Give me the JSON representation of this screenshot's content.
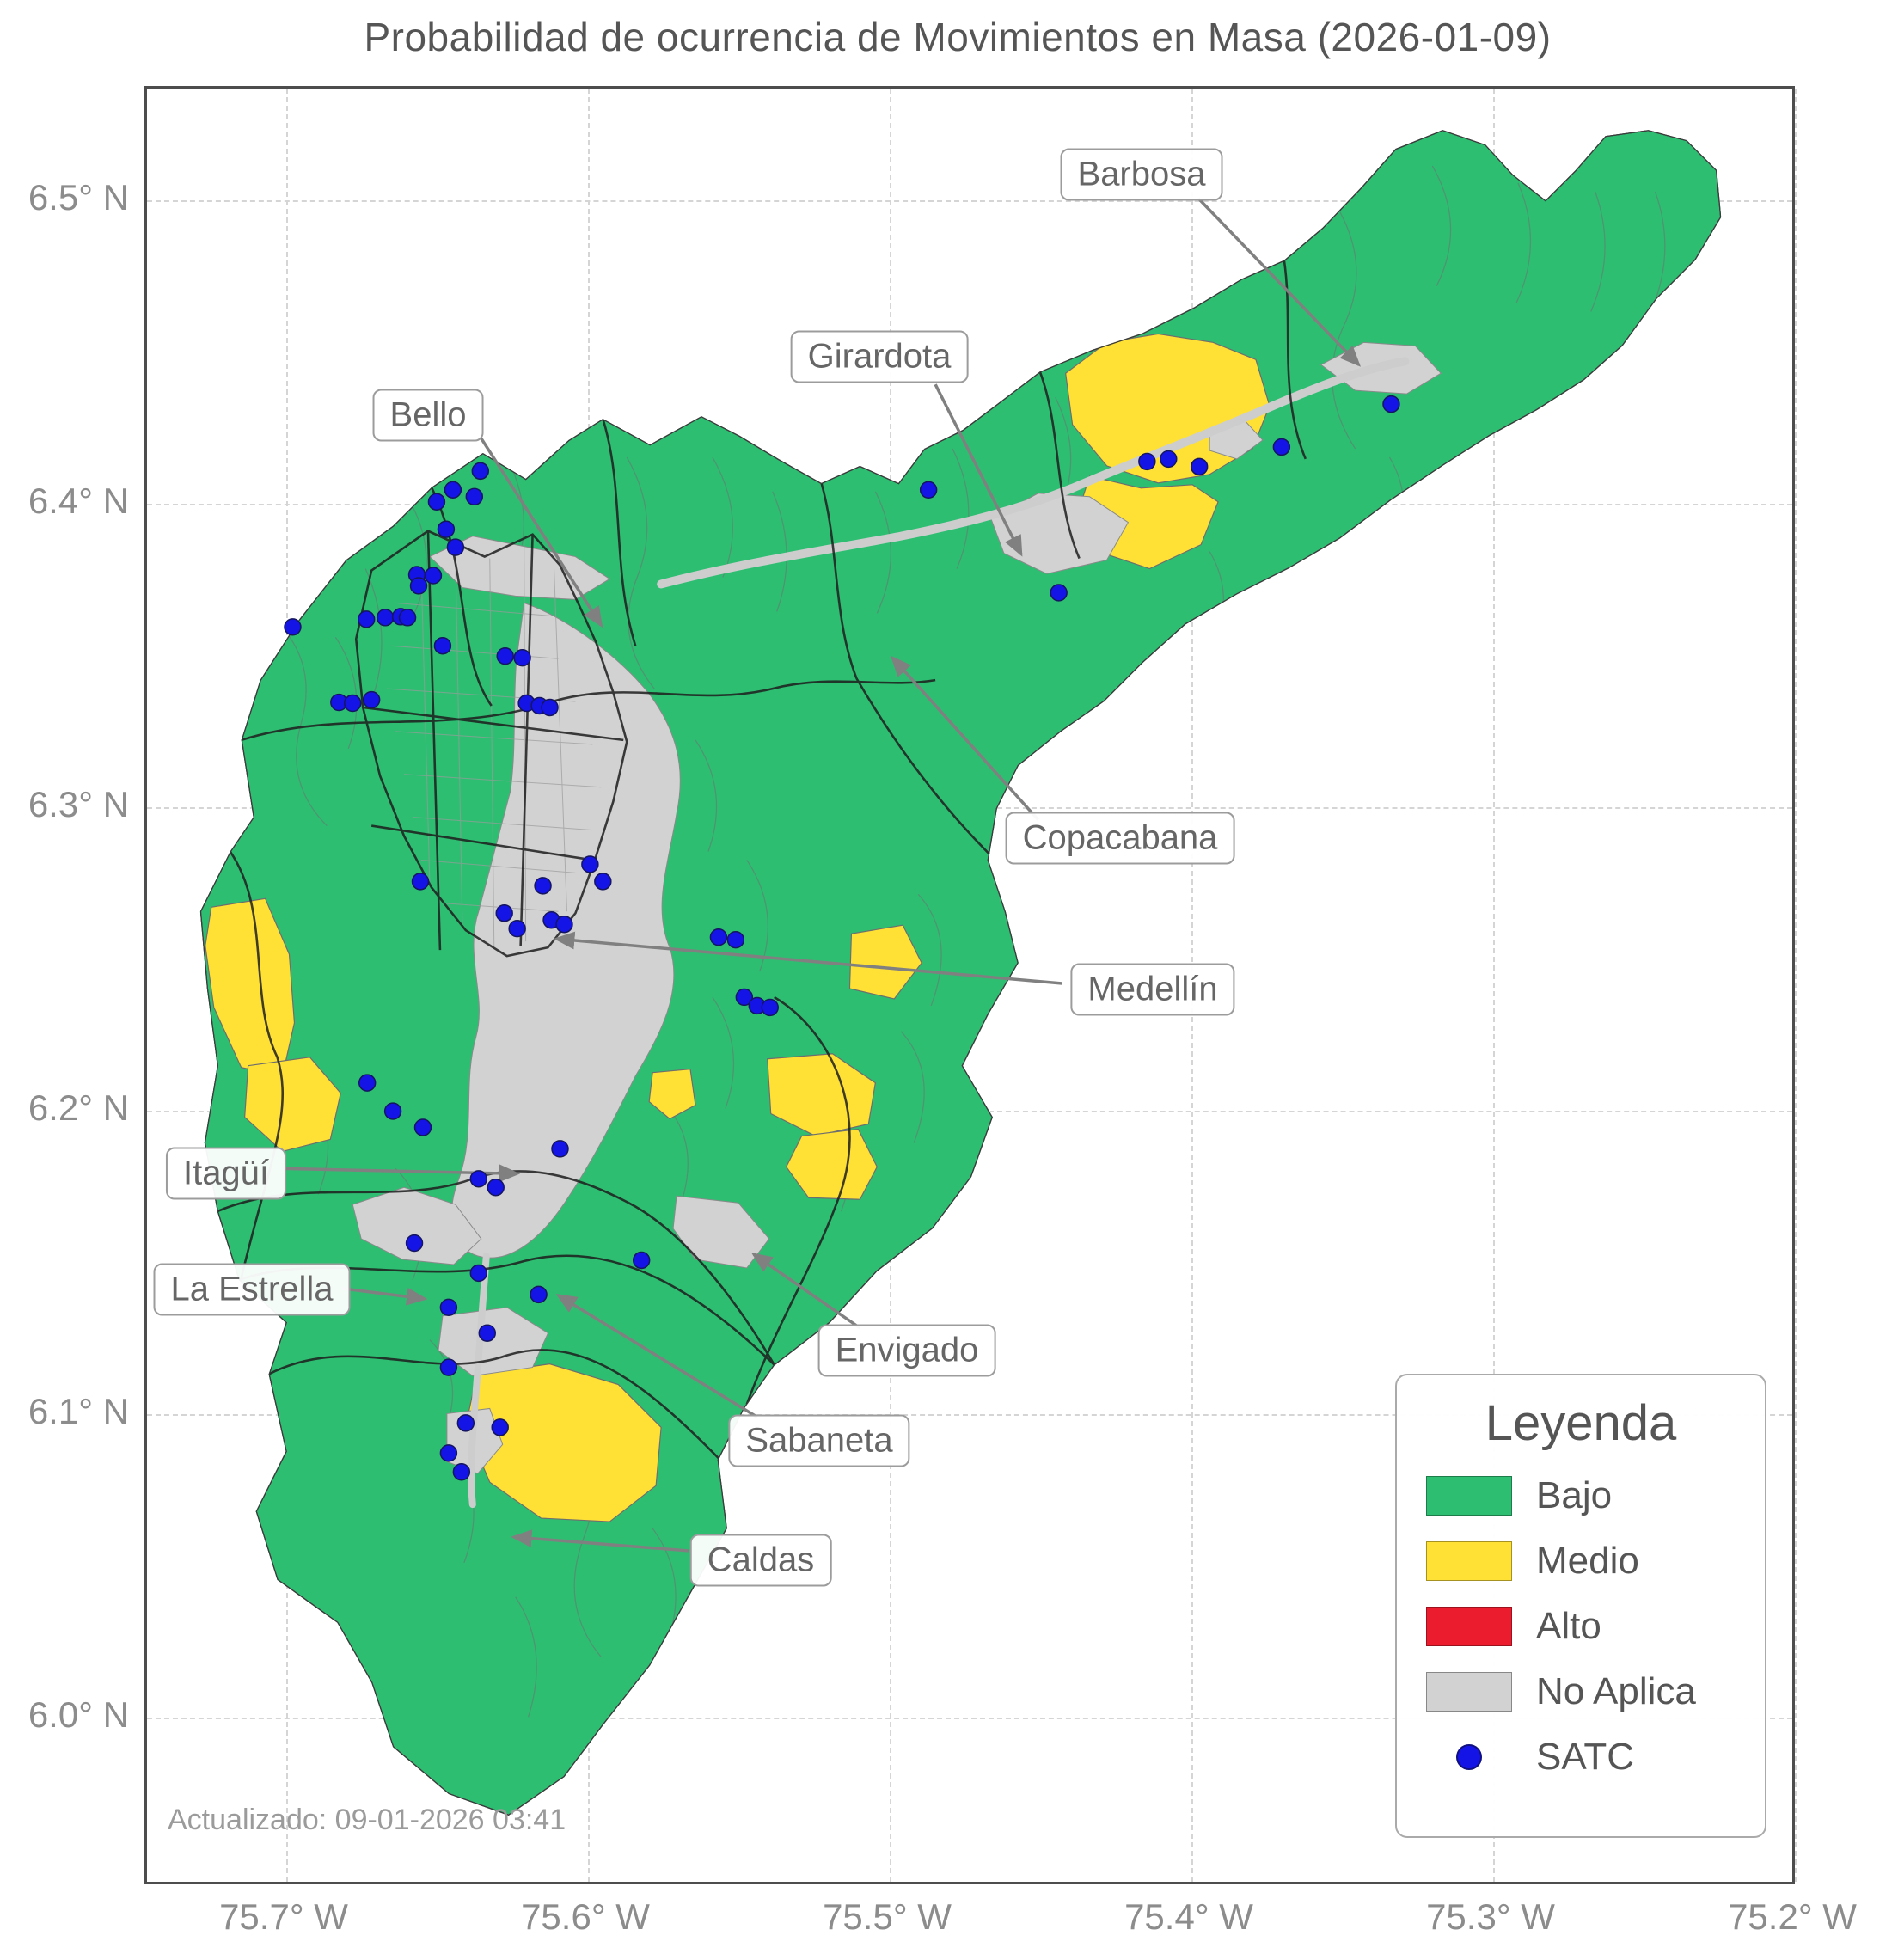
{
  "title": "Probabilidad de ocurrencia de Movimientos en Masa (2026-01-09)",
  "updated_text": "Actualizado: 09-01-2026 03:41",
  "axes": {
    "x_ticks": [
      "75.7° W",
      "75.6° W",
      "75.5° W",
      "75.4° W",
      "75.3° W",
      "75.2° W"
    ],
    "y_ticks": [
      "6.5° N",
      "6.4° N",
      "6.3° N",
      "6.2° N",
      "6.1° N",
      "6.0° N"
    ]
  },
  "legend": {
    "title": "Leyenda",
    "items": [
      {
        "label": "Bajo",
        "color": "#2EBE72"
      },
      {
        "label": "Medio",
        "color": "#FFE135"
      },
      {
        "label": "Alto",
        "color": "#EB1C2E"
      },
      {
        "label": "No Aplica",
        "color": "#D2D2D2"
      },
      {
        "label": "SATC",
        "color": "#1414E6"
      }
    ]
  },
  "annotations": [
    {
      "label": "Barbosa"
    },
    {
      "label": "Girardota"
    },
    {
      "label": "Bello"
    },
    {
      "label": "Copacabana"
    },
    {
      "label": "Medellín"
    },
    {
      "label": "Itagüí"
    },
    {
      "label": "La Estrella"
    },
    {
      "label": "Envigado"
    },
    {
      "label": "Sabaneta"
    },
    {
      "label": "Caldas"
    }
  ],
  "map": {
    "colors": {
      "bajo": "#2EBE72",
      "medio": "#FFE135",
      "alto": "#EB1C2E",
      "no_aplica": "#D2D2D2"
    },
    "satc_color": "#1414E6",
    "satc_points": [
      [
        912,
        468
      ],
      [
        1064,
        588
      ],
      [
        1167,
        435
      ],
      [
        1192,
        432
      ],
      [
        1228,
        441
      ],
      [
        1324,
        418
      ],
      [
        1452,
        368
      ],
      [
        389,
        446
      ],
      [
        357,
        468
      ],
      [
        382,
        476
      ],
      [
        338,
        482
      ],
      [
        349,
        514
      ],
      [
        360,
        535
      ],
      [
        315,
        567
      ],
      [
        334,
        568
      ],
      [
        317,
        580
      ],
      [
        170,
        628
      ],
      [
        256,
        619
      ],
      [
        278,
        617
      ],
      [
        296,
        616
      ],
      [
        304,
        617
      ],
      [
        345,
        650
      ],
      [
        418,
        662
      ],
      [
        438,
        664
      ],
      [
        443,
        717
      ],
      [
        458,
        720
      ],
      [
        470,
        722
      ],
      [
        224,
        716
      ],
      [
        240,
        717
      ],
      [
        262,
        713
      ],
      [
        517,
        905
      ],
      [
        532,
        925
      ],
      [
        462,
        930
      ],
      [
        319,
        925
      ],
      [
        432,
        980
      ],
      [
        472,
        970
      ],
      [
        487,
        975
      ],
      [
        417,
        962
      ],
      [
        667,
        990
      ],
      [
        687,
        993
      ],
      [
        697,
        1060
      ],
      [
        712,
        1070
      ],
      [
        727,
        1072
      ],
      [
        257,
        1160
      ],
      [
        287,
        1193
      ],
      [
        322,
        1212
      ],
      [
        482,
        1237
      ],
      [
        387,
        1272
      ],
      [
        407,
        1282
      ],
      [
        312,
        1347
      ],
      [
        387,
        1382
      ],
      [
        577,
        1367
      ],
      [
        352,
        1422
      ],
      [
        457,
        1407
      ],
      [
        397,
        1452
      ],
      [
        352,
        1492
      ],
      [
        372,
        1557
      ],
      [
        412,
        1562
      ],
      [
        352,
        1592
      ],
      [
        367,
        1614
      ]
    ]
  }
}
